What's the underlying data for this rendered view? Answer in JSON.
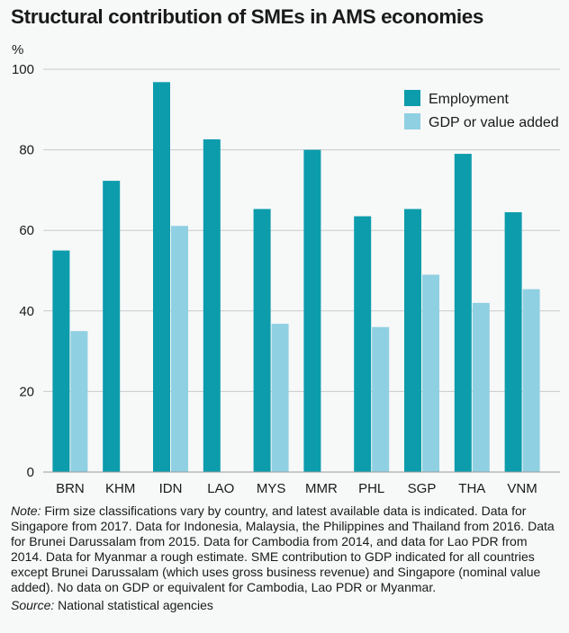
{
  "chart_data": {
    "type": "bar",
    "title": "Structural contribution of SMEs in AMS economies",
    "ylabel": "%",
    "xlabel": "",
    "ylim": [
      0,
      100
    ],
    "yticks": [
      0,
      20,
      40,
      60,
      80,
      100
    ],
    "grid": "horizontal",
    "legend_position": "top-right",
    "categories": [
      "BRN",
      "KHM",
      "IDN",
      "LAO",
      "MYS",
      "MMR",
      "PHL",
      "SGP",
      "THA",
      "VNM"
    ],
    "series": [
      {
        "name": "Employment",
        "color": "#0c9cac",
        "values": [
          55,
          72.3,
          96.8,
          82.6,
          65.3,
          80,
          63.5,
          65.3,
          79,
          64.5
        ]
      },
      {
        "name": "GDP or value added",
        "color": "#8fd0e2",
        "values": [
          35,
          null,
          61.1,
          null,
          36.8,
          null,
          36,
          49,
          42,
          45.4
        ]
      }
    ]
  },
  "note": {
    "label": "Note:",
    "text": "Firm size classifications vary by country, and latest available data is indicated. Data for Singapore from 2017. Data for Indonesia, Malaysia, the Philippines and Thailand from 2016. Data for Brunei Darussalam from 2015. Data for Cambodia from 2014, and data for Lao PDR from 2014. Data for Myanmar a rough estimate. SME contribution to GDP indicated for all countries except Brunei Darussalam (which uses gross business revenue) and Singapore (nominal value added). No data on GDP or equivalent for Cambodia, Lao PDR or Myanmar."
  },
  "source": {
    "label": "Source:",
    "text": "National statistical agencies"
  }
}
